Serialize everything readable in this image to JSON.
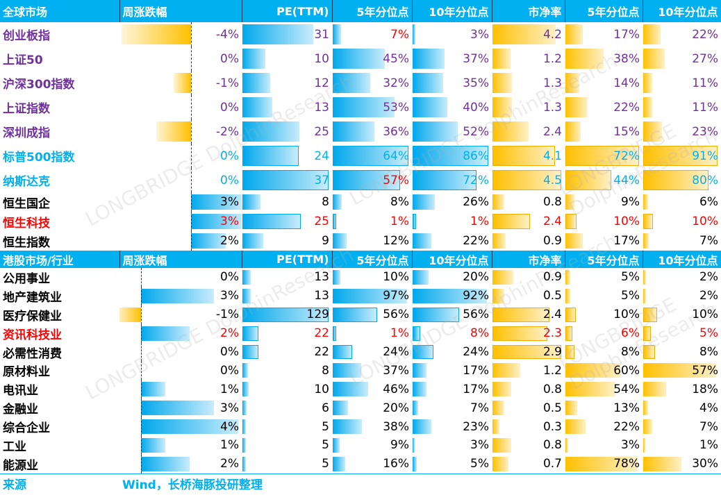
{
  "colors": {
    "purple": "#7030a0",
    "cyan": "#00b0f0",
    "black": "#000000",
    "red": "#ff0000"
  },
  "global": {
    "headers": [
      "全球市场",
      "周涨跌幅",
      "PE(TTM)",
      "5年分位点",
      "10年分位点",
      "市净率",
      "5年分位点",
      "10年分位点"
    ],
    "rows": [
      {
        "name": "创业板指",
        "color": "purple",
        "wk": -4,
        "pe": 31,
        "pe5": 7,
        "pe10": 3,
        "pb": 4.2,
        "pb5": 17,
        "pb10": 22,
        "red": [
          "pe5"
        ]
      },
      {
        "name": "上证50",
        "color": "purple",
        "wk": 0,
        "pe": 10,
        "pe5": 45,
        "pe10": 37,
        "pb": 1.2,
        "pb5": 38,
        "pb10": 27
      },
      {
        "name": "沪深300指数",
        "color": "purple",
        "wk": -1,
        "pe": 12,
        "pe5": 32,
        "pe10": 35,
        "pb": 1.3,
        "pb5": 14,
        "pb10": 11
      },
      {
        "name": "上证指数",
        "color": "purple",
        "wk": 0,
        "pe": 13,
        "pe5": 53,
        "pe10": 40,
        "pb": 1.3,
        "pb5": 22,
        "pb10": 11
      },
      {
        "name": "深圳成指",
        "color": "purple",
        "wk": -2,
        "pe": 25,
        "pe5": 36,
        "pe10": 52,
        "pb": 2.4,
        "pb5": 15,
        "pb10": 23
      },
      {
        "name": "标普500指数",
        "color": "cyan",
        "wk": 0,
        "pe": 24,
        "pe5": 64,
        "pe10": 86,
        "pb": 4.1,
        "pb5": 72,
        "pb10": 91
      },
      {
        "name": "纳斯达克",
        "color": "cyan",
        "wk": 0,
        "pe": 37,
        "pe5": 57,
        "pe10": 72,
        "pb": 4.5,
        "pb5": 44,
        "pb10": 80,
        "red": [
          "pe5"
        ]
      },
      {
        "name": "恒生国企",
        "color": "black",
        "wk": 3,
        "pe": 8,
        "pe5": 8,
        "pe10": 26,
        "pb": 0.8,
        "pb5": 9,
        "pb10": 6
      },
      {
        "name": "恒生科技",
        "color": "red",
        "wk": 3,
        "pe": 25,
        "pe5": 1,
        "pe10": 1,
        "pb": 2.4,
        "pb5": 10,
        "pb10": 10
      },
      {
        "name": "恒生指数",
        "color": "black",
        "wk": 2,
        "pe": 9,
        "pe5": 12,
        "pe10": 22,
        "pb": 0.9,
        "pb5": 17,
        "pb10": 7
      }
    ]
  },
  "hk": {
    "headers": [
      "港股市场/行业",
      "周涨跌幅",
      "PE(TTM)",
      "5年分位点",
      "10年分位点",
      "市净率",
      "5年分位点",
      "10年分位点"
    ],
    "rows": [
      {
        "name": "公用事业",
        "color": "black",
        "wk": 0,
        "pe": 13,
        "pe5": 10,
        "pe10": 20,
        "pb": 0.9,
        "pb5": 5,
        "pb10": 2
      },
      {
        "name": "地产建筑业",
        "color": "black",
        "wk": 3,
        "pe": 13,
        "pe5": 97,
        "pe10": 92,
        "pb": 0.5,
        "pb5": 5,
        "pb10": 2
      },
      {
        "name": "医疗保健业",
        "color": "black",
        "wk": -1,
        "pe": 129,
        "pe5": 56,
        "pe10": 56,
        "pb": 2.4,
        "pb5": 10,
        "pb10": 10
      },
      {
        "name": "资讯科技业",
        "color": "red",
        "wk": 2,
        "pe": 22,
        "pe5": 1,
        "pe10": 8,
        "pb": 2.3,
        "pb5": 6,
        "pb10": 5
      },
      {
        "name": "必需性消费",
        "color": "black",
        "wk": 0,
        "pe": 22,
        "pe5": 24,
        "pe10": 24,
        "pb": 2.9,
        "pb5": 8,
        "pb10": 8
      },
      {
        "name": "原材料业",
        "color": "black",
        "wk": 0,
        "pe": 8,
        "pe5": 37,
        "pe10": 17,
        "pb": 1.2,
        "pb5": 60,
        "pb10": 57
      },
      {
        "name": "电讯业",
        "color": "black",
        "wk": 1,
        "pe": 10,
        "pe5": 46,
        "pe10": 17,
        "pb": 0.8,
        "pb5": 54,
        "pb10": 18
      },
      {
        "name": "金融业",
        "color": "black",
        "wk": 3,
        "pe": 6,
        "pe5": 20,
        "pe10": 7,
        "pb": 0.5,
        "pb5": 13,
        "pb10": 4
      },
      {
        "name": "综合企业",
        "color": "black",
        "wk": 4,
        "pe": 5,
        "pe5": 38,
        "pe10": 23,
        "pb": 0.3,
        "pb5": 22,
        "pb10": 7
      },
      {
        "name": "工业",
        "color": "black",
        "wk": 1,
        "pe": 5,
        "pe5": 9,
        "pe10": 3,
        "pb": 0.8,
        "pb5": 3,
        "pb10": 1
      },
      {
        "name": "能源业",
        "color": "black",
        "wk": 2,
        "pe": 5,
        "pe5": 16,
        "pe10": 5,
        "pb": 0.7,
        "pb5": 78,
        "pb10": 30
      }
    ]
  },
  "footer": {
    "label": "来源",
    "text": "Wind，长桥海豚投研整理"
  },
  "watermark": "LONGBRIDGE DolphinResearch"
}
